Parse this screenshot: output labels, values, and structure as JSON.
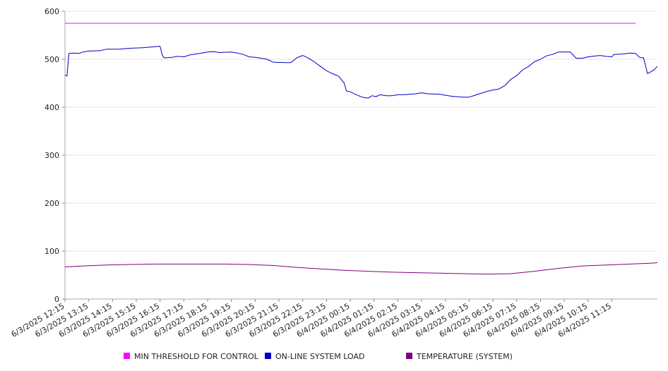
{
  "chart_data": {
    "type": "line",
    "title": "",
    "xlabel": "",
    "ylabel": "",
    "ylim": [
      0,
      600
    ],
    "yticks": [
      0,
      100,
      200,
      300,
      400,
      500,
      600
    ],
    "grid": true,
    "legend_position": "bottom",
    "x_tick_labels": [
      "6/3/2025 12:15",
      "6/3/2025 13:15",
      "6/3/2025 14:15",
      "6/3/2025 15:15",
      "6/3/2025 16:15",
      "6/3/2025 17:15",
      "6/3/2025 18:15",
      "6/3/2025 19:15",
      "6/3/2025 20:15",
      "6/3/2025 21:15",
      "6/3/2025 22:15",
      "6/3/2025 23:15",
      "6/4/2025 00:15",
      "6/4/2025 01:15",
      "6/4/2025 02:15",
      "6/4/2025 03:15",
      "6/4/2025 04:15",
      "6/4/2025 05:15",
      "6/4/2025 06:15",
      "6/4/2025 07:15",
      "6/4/2025 08:15",
      "6/4/2025 09:15",
      "6/4/2025 10:15",
      "6/4/2025 11:15"
    ],
    "x_range": [
      "6/3/2025 12:15",
      "6/4/2025 12:15"
    ],
    "series": [
      {
        "name": "MIN THRESHOLD FOR CONTROL",
        "color": "#ff00ff",
        "points": [
          [
            "6/3/2025 12:15",
            575
          ],
          [
            "6/4/2025 12:15",
            575
          ]
        ]
      },
      {
        "name": "ON-LINE SYSTEM LOAD",
        "color": "#0000cc",
        "points": [
          [
            "6/3/2025 12:15",
            467
          ],
          [
            "6/3/2025 12:20",
            465
          ],
          [
            "6/3/2025 12:25",
            512
          ],
          [
            "6/3/2025 12:35",
            513
          ],
          [
            "6/3/2025 12:50",
            512
          ],
          [
            "6/3/2025 13:00",
            515
          ],
          [
            "6/3/2025 13:15",
            517
          ],
          [
            "6/3/2025 13:45",
            518
          ],
          [
            "6/3/2025 14:00",
            521
          ],
          [
            "6/3/2025 14:30",
            521
          ],
          [
            "6/3/2025 15:00",
            523
          ],
          [
            "6/3/2025 15:30",
            524
          ],
          [
            "6/3/2025 16:00",
            526
          ],
          [
            "6/3/2025 16:15",
            527
          ],
          [
            "6/3/2025 16:20",
            510
          ],
          [
            "6/3/2025 16:25",
            503
          ],
          [
            "6/3/2025 16:45",
            504
          ],
          [
            "6/3/2025 17:00",
            506
          ],
          [
            "6/3/2025 17:15",
            505
          ],
          [
            "6/3/2025 17:30",
            509
          ],
          [
            "6/3/2025 18:00",
            513
          ],
          [
            "6/3/2025 18:15",
            515
          ],
          [
            "6/3/2025 18:30",
            516
          ],
          [
            "6/3/2025 18:45",
            514
          ],
          [
            "6/3/2025 19:15",
            515
          ],
          [
            "6/3/2025 19:30",
            513
          ],
          [
            "6/3/2025 19:45",
            510
          ],
          [
            "6/3/2025 20:00",
            505
          ],
          [
            "6/3/2025 20:15",
            504
          ],
          [
            "6/3/2025 20:45",
            500
          ],
          [
            "6/3/2025 21:00",
            494
          ],
          [
            "6/3/2025 21:30",
            493
          ],
          [
            "6/3/2025 21:45",
            493
          ],
          [
            "6/3/2025 22:00",
            503
          ],
          [
            "6/3/2025 22:15",
            508
          ],
          [
            "6/3/2025 22:30",
            502
          ],
          [
            "6/3/2025 22:45",
            494
          ],
          [
            "6/3/2025 23:00",
            485
          ],
          [
            "6/3/2025 23:15",
            476
          ],
          [
            "6/3/2025 23:30",
            470
          ],
          [
            "6/3/2025 23:45",
            465
          ],
          [
            "6/4/2025 00:00",
            450
          ],
          [
            "6/4/2025 00:05",
            434
          ],
          [
            "6/4/2025 00:15",
            432
          ],
          [
            "6/4/2025 00:30",
            426
          ],
          [
            "6/4/2025 00:45",
            421
          ],
          [
            "6/4/2025 01:00",
            419
          ],
          [
            "6/4/2025 01:10",
            424
          ],
          [
            "6/4/2025 01:20",
            422
          ],
          [
            "6/4/2025 01:30",
            426
          ],
          [
            "6/4/2025 01:45",
            424
          ],
          [
            "6/4/2025 02:00",
            424
          ],
          [
            "6/4/2025 02:15",
            426
          ],
          [
            "6/4/2025 02:30",
            426
          ],
          [
            "6/4/2025 03:00",
            428
          ],
          [
            "6/4/2025 03:15",
            430
          ],
          [
            "6/4/2025 03:30",
            428
          ],
          [
            "6/4/2025 04:00",
            427
          ],
          [
            "6/4/2025 04:30",
            423
          ],
          [
            "6/4/2025 05:00",
            421
          ],
          [
            "6/4/2025 05:15",
            421
          ],
          [
            "6/4/2025 05:30",
            425
          ],
          [
            "6/4/2025 06:00",
            433
          ],
          [
            "6/4/2025 06:15",
            436
          ],
          [
            "6/4/2025 06:30",
            438
          ],
          [
            "6/4/2025 06:45",
            445
          ],
          [
            "6/4/2025 07:00",
            458
          ],
          [
            "6/4/2025 07:15",
            466
          ],
          [
            "6/4/2025 07:30",
            478
          ],
          [
            "6/4/2025 07:45",
            485
          ],
          [
            "6/4/2025 08:00",
            495
          ],
          [
            "6/4/2025 08:15",
            500
          ],
          [
            "6/4/2025 08:30",
            507
          ],
          [
            "6/4/2025 08:45",
            510
          ],
          [
            "6/4/2025 09:00",
            515
          ],
          [
            "6/4/2025 09:30",
            515
          ],
          [
            "6/4/2025 09:45",
            502
          ],
          [
            "6/4/2025 10:00",
            502
          ],
          [
            "6/4/2025 10:15",
            505
          ],
          [
            "6/4/2025 10:45",
            508
          ],
          [
            "6/4/2025 11:00",
            506
          ],
          [
            "6/4/2025 11:15",
            505
          ],
          [
            "6/4/2025 11:20",
            510
          ],
          [
            "6/4/2025 11:45",
            511
          ],
          [
            "6/4/2025 12:00",
            513
          ],
          [
            "6/4/2025 12:15",
            512
          ],
          [
            "6/4/2025 12:25",
            504
          ],
          [
            "6/4/2025 12:35",
            503
          ],
          [
            "6/4/2025 12:45",
            470
          ],
          [
            "6/4/2025 13:00",
            477
          ],
          [
            "6/4/2025 13:10",
            485
          ]
        ]
      },
      {
        "name": "TEMPERATURE (SYSTEM)",
        "color": "#800080",
        "points": [
          [
            "6/3/2025 12:15",
            67
          ],
          [
            "6/3/2025 13:00",
            69
          ],
          [
            "6/3/2025 14:00",
            71
          ],
          [
            "6/3/2025 15:00",
            72
          ],
          [
            "6/3/2025 16:00",
            73
          ],
          [
            "6/3/2025 17:00",
            73
          ],
          [
            "6/3/2025 18:00",
            73
          ],
          [
            "6/3/2025 19:00",
            73
          ],
          [
            "6/3/2025 20:00",
            72
          ],
          [
            "6/3/2025 21:00",
            70
          ],
          [
            "6/3/2025 22:00",
            66
          ],
          [
            "6/3/2025 23:00",
            63
          ],
          [
            "6/4/2025 00:00",
            60
          ],
          [
            "6/4/2025 01:00",
            58
          ],
          [
            "6/4/2025 02:00",
            56
          ],
          [
            "6/4/2025 03:00",
            55
          ],
          [
            "6/4/2025 04:00",
            54
          ],
          [
            "6/4/2025 05:00",
            53
          ],
          [
            "6/4/2025 06:00",
            52
          ],
          [
            "6/4/2025 07:00",
            53
          ],
          [
            "6/4/2025 08:00",
            58
          ],
          [
            "6/4/2025 09:00",
            64
          ],
          [
            "6/4/2025 10:00",
            69
          ],
          [
            "6/4/2025 11:00",
            71
          ],
          [
            "6/4/2025 12:00",
            73
          ],
          [
            "6/4/2025 13:00",
            75
          ],
          [
            "6/4/2025 13:10",
            76
          ]
        ]
      }
    ]
  }
}
